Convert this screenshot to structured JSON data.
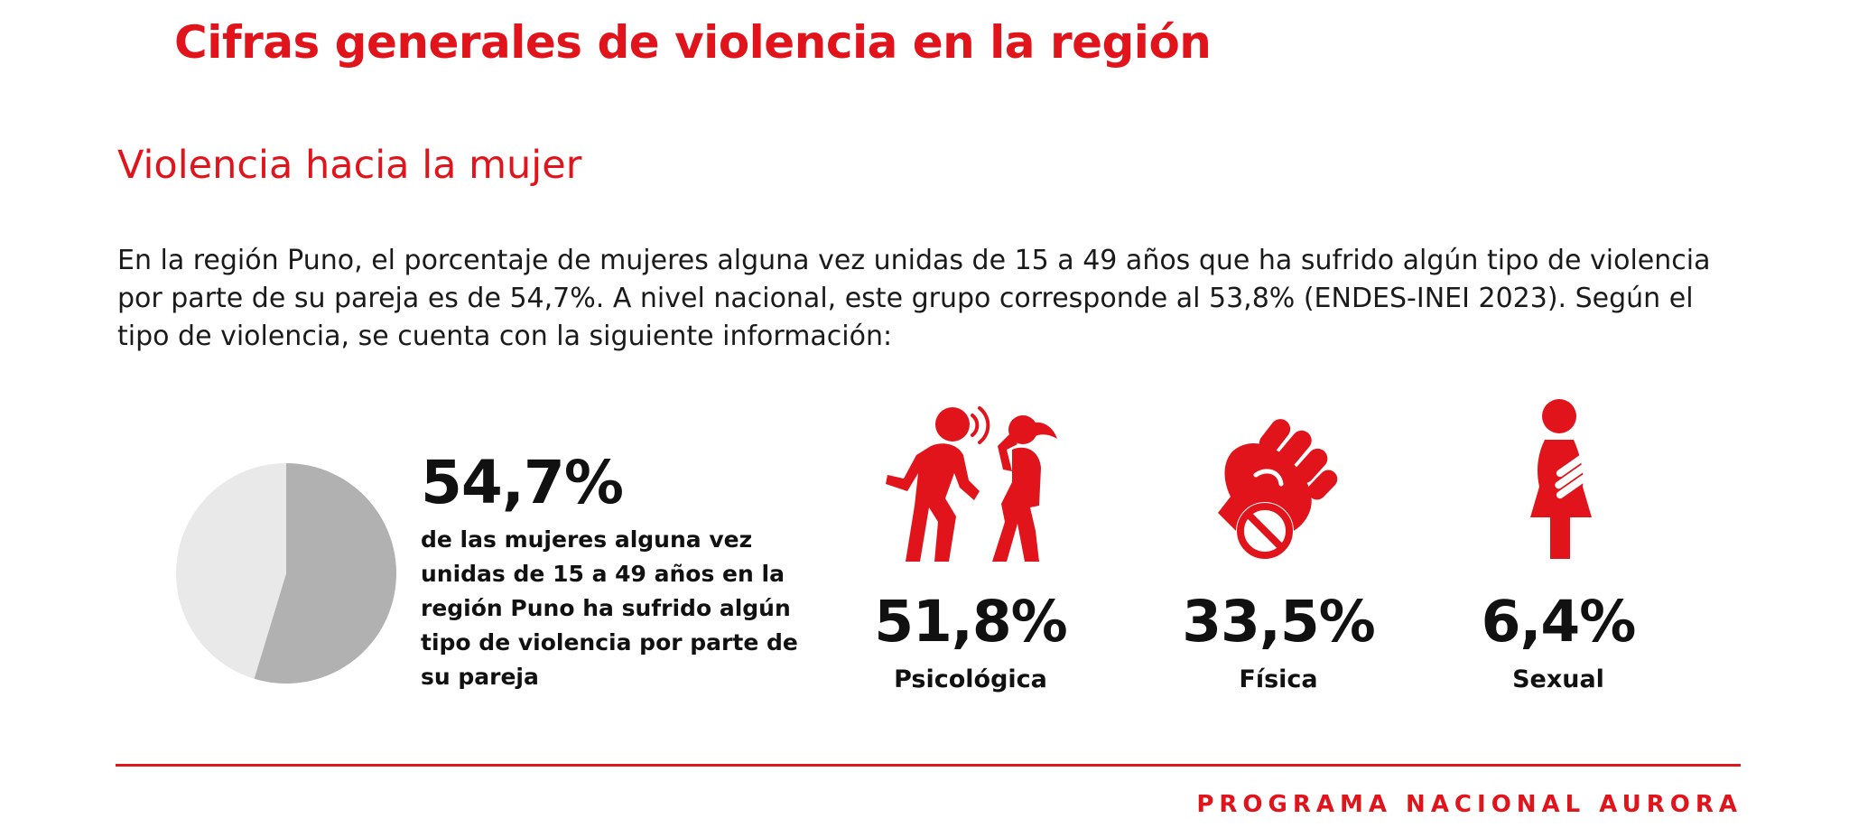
{
  "page": {
    "title": "Cifras generales de violencia en la región",
    "section_title": "Violencia hacia la mujer",
    "intro": "En la región Puno, el porcentaje de mujeres alguna vez unidas de 15 a 49 años que ha sufrido algún tipo de violencia por parte de su pareja es de 54,7%. A nivel nacional, este grupo corresponde al 53,8% (ENDES-INEI 2023). Según el tipo de violencia, se cuenta con la siguiente información:"
  },
  "highlight": {
    "value": "54,7%",
    "description": "de las mujeres alguna vez unidas de 15 a 49 años en la región Puno ha sufrido algún tipo de violencia por parte de su pareja"
  },
  "types": [
    {
      "value": "51,8%",
      "label": "Psicológica",
      "icon": "psychological-violence-icon"
    },
    {
      "value": "33,5%",
      "label": "Física",
      "icon": "fist-no-violence-icon"
    },
    {
      "value": "6,4%",
      "label": "Sexual",
      "icon": "sexual-violence-icon"
    }
  ],
  "footer": "PROGRAMA NACIONAL AURORA",
  "colors": {
    "accent": "#e1141c",
    "pie_dark": "#b1b1b1",
    "pie_light": "#e9e9e9",
    "text": "#111111"
  },
  "chart_data": {
    "type": "pie",
    "values": [
      54.7,
      45.3
    ],
    "colors": [
      "#b1b1b1",
      "#e9e9e9"
    ]
  }
}
